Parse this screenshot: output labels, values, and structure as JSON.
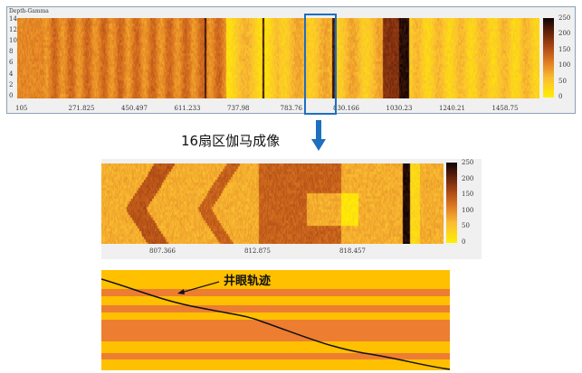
{
  "top_panel": {
    "title": "Depth-Gamma",
    "x_ticks": [
      "105",
      "271.825",
      "450.497",
      "611.233",
      "737.98",
      "783.76",
      "830.166",
      "1030.23",
      "1240.21",
      "1458.75"
    ],
    "y_ticks": [
      "0",
      "2",
      "4",
      "6",
      "8",
      "10",
      "12",
      "14"
    ],
    "colorbar_ticks": [
      "0",
      "50",
      "100",
      "150",
      "200",
      "250"
    ]
  },
  "selection_color": "#1f6fbf",
  "middle_title": "16扇区伽马成像",
  "middle_panel": {
    "x_ticks": [
      "807.366",
      "812.875",
      "818.457"
    ],
    "colorbar_ticks": [
      "0",
      "50",
      "100",
      "150",
      "200",
      "250"
    ]
  },
  "bottom_panel": {
    "label": "井眼轨迹",
    "colors": {
      "sand": "#ffc000",
      "shale": "#ed7d31",
      "trajectory": "#111111"
    }
  }
}
